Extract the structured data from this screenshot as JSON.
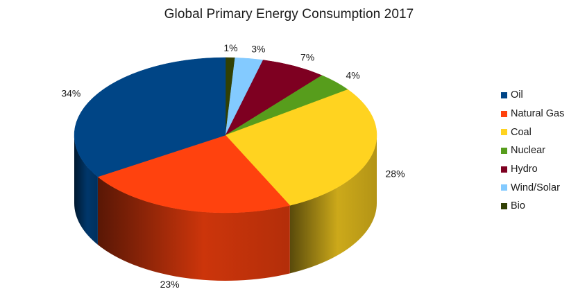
{
  "chart_data": {
    "type": "pie",
    "title": "Global Primary Energy Consumption 2017",
    "legend_position": "right",
    "slices": [
      {
        "name": "Oil",
        "value": 34,
        "label": "34%",
        "color": "#004586"
      },
      {
        "name": "Natural Gas",
        "value": 23,
        "label": "23%",
        "color": "#ff420e"
      },
      {
        "name": "Coal",
        "value": 28,
        "label": "28%",
        "color": "#ffd320"
      },
      {
        "name": "Nuclear",
        "value": 4,
        "label": "4%",
        "color": "#579d1c"
      },
      {
        "name": "Hydro",
        "value": 7,
        "label": "7%",
        "color": "#7e0021"
      },
      {
        "name": "Wind/Solar",
        "value": 3,
        "label": "3%",
        "color": "#83caff"
      },
      {
        "name": "Bio",
        "value": 1,
        "label": "1%",
        "color": "#314004"
      }
    ]
  }
}
